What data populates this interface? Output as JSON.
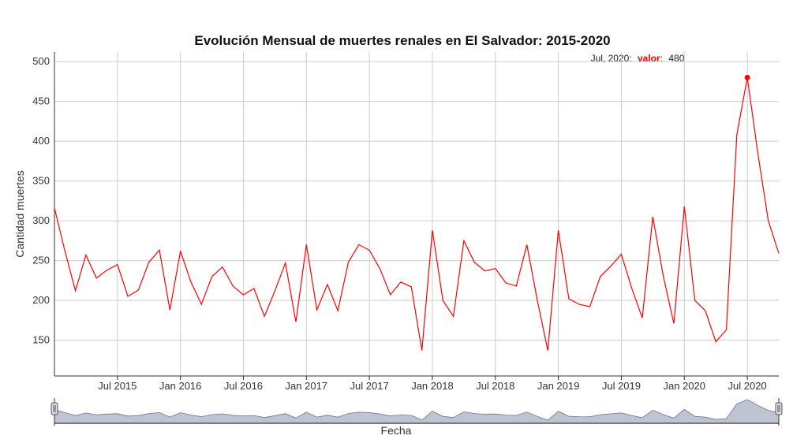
{
  "chart_data": {
    "type": "line",
    "title": "Evolución Mensual de muertes renales en El Salvador: 2015-2020",
    "xlabel": "Fecha",
    "ylabel": "Cantidad muertes",
    "ylim": [
      105,
      512
    ],
    "yticks": [
      "150",
      "200",
      "250",
      "300",
      "350",
      "400",
      "450",
      "500"
    ],
    "xlim": [
      "2015-01",
      "2020-10"
    ],
    "xticks": [
      {
        "label": "Jul 2015",
        "date": "2015-07"
      },
      {
        "label": "Jan 2016",
        "date": "2016-01"
      },
      {
        "label": "Jul 2016",
        "date": "2016-07"
      },
      {
        "label": "Jan 2017",
        "date": "2017-01"
      },
      {
        "label": "Jul 2017",
        "date": "2017-07"
      },
      {
        "label": "Jan 2018",
        "date": "2018-01"
      },
      {
        "label": "Jul 2018",
        "date": "2018-07"
      },
      {
        "label": "Jan 2019",
        "date": "2019-01"
      },
      {
        "label": "Jul 2019",
        "date": "2019-07"
      },
      {
        "label": "Jan 2020",
        "date": "2020-01"
      },
      {
        "label": "Jul 2020",
        "date": "2020-07"
      }
    ],
    "grid": true,
    "line_color": "#ff0000",
    "navigator_color": "#a9b0c3",
    "x": [
      "2015-01",
      "2015-02",
      "2015-03",
      "2015-04",
      "2015-05",
      "2015-06",
      "2015-07",
      "2015-08",
      "2015-09",
      "2015-10",
      "2015-11",
      "2015-12",
      "2016-01",
      "2016-02",
      "2016-03",
      "2016-04",
      "2016-05",
      "2016-06",
      "2016-07",
      "2016-08",
      "2016-09",
      "2016-10",
      "2016-11",
      "2016-12",
      "2017-01",
      "2017-02",
      "2017-03",
      "2017-04",
      "2017-05",
      "2017-06",
      "2017-07",
      "2017-08",
      "2017-09",
      "2017-10",
      "2017-11",
      "2017-12",
      "2018-01",
      "2018-02",
      "2018-03",
      "2018-04",
      "2018-05",
      "2018-06",
      "2018-07",
      "2018-08",
      "2018-09",
      "2018-10",
      "2018-11",
      "2018-12",
      "2019-01",
      "2019-02",
      "2019-03",
      "2019-04",
      "2019-05",
      "2019-06",
      "2019-07",
      "2019-08",
      "2019-09",
      "2019-10",
      "2019-11",
      "2019-12",
      "2020-01",
      "2020-02",
      "2020-03",
      "2020-04",
      "2020-05",
      "2020-06",
      "2020-07",
      "2020-08",
      "2020-09",
      "2020-10"
    ],
    "series": [
      {
        "values": [
          316,
          262,
          212,
          257,
          228,
          238,
          245,
          205,
          213,
          248,
          263,
          188,
          262,
          223,
          195,
          230,
          242,
          218,
          207,
          215,
          180,
          212,
          247,
          173,
          270,
          188,
          220,
          187,
          248,
          270,
          263,
          240,
          207,
          223,
          217,
          137,
          288,
          200,
          180,
          275,
          248,
          237,
          240,
          222,
          218,
          270,
          200,
          137,
          288,
          202,
          195,
          192,
          230,
          243,
          258,
          215,
          178,
          305,
          230,
          171,
          318,
          200,
          187,
          148,
          163,
          408,
          480,
          385,
          300,
          259
        ]
      }
    ],
    "highlight": {
      "date": "2020-07",
      "value": 480
    },
    "tooltip": {
      "date_label": "Jul, 2020:",
      "key": "valor",
      "value": "480"
    }
  }
}
